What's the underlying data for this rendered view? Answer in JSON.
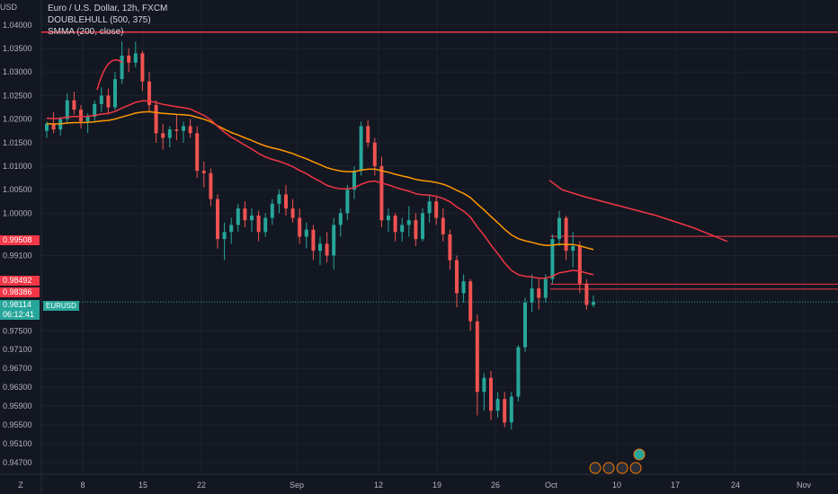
{
  "header": {
    "currency": "USD",
    "title": "Euro / U.S. Dollar, 12h, FXCM",
    "indicator1": "DOUBLEHULL (500, 375)",
    "indicator2": "SMMA (200, close)"
  },
  "price_tags": {
    "resistance1": "0.99508",
    "resistance2": "0.98492",
    "resistance3": "0.98386",
    "current_price": "0.98114",
    "countdown": "06:12:41",
    "symbol": "EURUSD"
  },
  "axis_corner": "Z",
  "colors": {
    "background": "#131722",
    "bull": "#26a69a",
    "bear": "#ef5350",
    "hull": "#f23645",
    "smma": "#ff9800",
    "grid": "#1e222d"
  },
  "chart_data": {
    "type": "candlestick",
    "title": "Euro / U.S. Dollar, 12h, FXCM",
    "y_ticks": [
      "1.04000",
      "1.03500",
      "1.03000",
      "1.02500",
      "1.02000",
      "1.01500",
      "1.01000",
      "1.00500",
      "1.00000",
      "0.99100",
      "0.97500",
      "0.97100",
      "0.96700",
      "0.96300",
      "0.95900",
      "0.95500",
      "0.95100",
      "0.94700"
    ],
    "x_ticks": [
      "8",
      "15",
      "22",
      "Sep",
      "12",
      "19",
      "26",
      "Oct",
      "10",
      "17",
      "24",
      "Nov"
    ],
    "ylim": [
      0.9445,
      1.0415
    ],
    "horizontal_lines": [
      1.0385,
      0.99508,
      0.98492,
      0.98386
    ],
    "current_price": 0.98114,
    "candles": [
      [
        1.0175,
        1.0195,
        1.016,
        1.019
      ],
      [
        1.019,
        1.0215,
        1.017,
        1.0178
      ],
      [
        1.0178,
        1.0205,
        1.0165,
        1.02
      ],
      [
        1.02,
        1.0255,
        1.019,
        1.024
      ],
      [
        1.024,
        1.0258,
        1.021,
        1.022
      ],
      [
        1.022,
        1.023,
        1.018,
        1.0195
      ],
      [
        1.0195,
        1.0212,
        1.017,
        1.0205
      ],
      [
        1.0205,
        1.024,
        1.0195,
        1.0232
      ],
      [
        1.0232,
        1.0268,
        1.0215,
        1.025
      ],
      [
        1.025,
        1.0265,
        1.021,
        1.0225
      ],
      [
        1.0225,
        1.03,
        1.022,
        1.0285
      ],
      [
        1.0285,
        1.0365,
        1.0275,
        1.0335
      ],
      [
        1.0335,
        1.035,
        1.03,
        1.032
      ],
      [
        1.032,
        1.0365,
        1.031,
        1.034
      ],
      [
        1.034,
        1.0345,
        1.026,
        1.028
      ],
      [
        1.028,
        1.03,
        1.0215,
        1.023
      ],
      [
        1.023,
        1.024,
        1.015,
        1.017
      ],
      [
        1.017,
        1.019,
        1.0135,
        1.016
      ],
      [
        1.016,
        1.0185,
        1.014,
        1.0178
      ],
      [
        1.0178,
        1.021,
        1.0155,
        1.0175
      ],
      [
        1.0175,
        1.0195,
        1.015,
        1.0185
      ],
      [
        1.0185,
        1.02,
        1.016,
        1.017
      ],
      [
        1.017,
        1.0185,
        1.0075,
        1.009
      ],
      [
        1.009,
        1.011,
        1.0055,
        1.0085
      ],
      [
        1.0085,
        1.0095,
        1.0015,
        1.003
      ],
      [
        1.003,
        1.004,
        0.9925,
        0.9945
      ],
      [
        0.9945,
        0.998,
        0.99,
        0.996
      ],
      [
        0.996,
        0.999,
        0.9935,
        0.9975
      ],
      [
        0.9975,
        1.002,
        0.996,
        1.001
      ],
      [
        1.001,
        1.0025,
        0.997,
        0.9985
      ],
      [
        0.9985,
        1.001,
        0.996,
        0.9995
      ],
      [
        0.9995,
        1.0005,
        0.994,
        0.996
      ],
      [
        0.996,
        1.0,
        0.995,
        0.999
      ],
      [
        0.999,
        1.003,
        0.9975,
        1.002
      ],
      [
        1.002,
        1.005,
        1.0,
        1.004
      ],
      [
        1.004,
        1.006,
        0.9995,
        1.001
      ],
      [
        1.001,
        1.003,
        0.998,
        0.999
      ],
      [
        0.999,
        1.001,
        0.9935,
        0.995
      ],
      [
        0.995,
        0.998,
        0.9925,
        0.9965
      ],
      [
        0.9965,
        0.9975,
        0.99,
        0.992
      ],
      [
        0.992,
        0.995,
        0.989,
        0.9935
      ],
      [
        0.9935,
        0.996,
        0.9895,
        0.991
      ],
      [
        0.991,
        0.999,
        0.988,
        0.9975
      ],
      [
        0.9975,
        1.001,
        0.995,
        1.0
      ],
      [
        1.0,
        1.006,
        0.9985,
        1.005
      ],
      [
        1.005,
        1.01,
        1.003,
        1.009
      ],
      [
        1.009,
        1.0195,
        1.008,
        1.0185
      ],
      [
        1.0185,
        1.0198,
        1.014,
        1.015
      ],
      [
        1.015,
        1.016,
        1.008,
        1.01
      ],
      [
        1.01,
        1.012,
        0.997,
        0.9985
      ],
      [
        0.9985,
        1.001,
        0.996,
        0.9995
      ],
      [
        0.9995,
        1.0,
        0.994,
        0.996
      ],
      [
        0.996,
        0.999,
        0.994,
        0.9975
      ],
      [
        0.9975,
        1.0015,
        0.995,
        0.9985
      ],
      [
        0.9985,
        1.0,
        0.993,
        0.9945
      ],
      [
        0.9945,
        1.001,
        0.994,
        1.0
      ],
      [
        1.0,
        1.004,
        0.998,
        1.0025
      ],
      [
        1.0025,
        1.0035,
        0.9975,
        0.999
      ],
      [
        0.999,
        1.001,
        0.994,
        0.9955
      ],
      [
        0.9955,
        0.9965,
        0.988,
        0.99
      ],
      [
        0.99,
        0.991,
        0.98,
        0.983
      ],
      [
        0.983,
        0.987,
        0.981,
        0.9855
      ],
      [
        0.9855,
        0.986,
        0.975,
        0.977
      ],
      [
        0.977,
        0.9785,
        0.957,
        0.962
      ],
      [
        0.962,
        0.966,
        0.958,
        0.965
      ],
      [
        0.965,
        0.9665,
        0.956,
        0.958
      ],
      [
        0.958,
        0.962,
        0.9565,
        0.9605
      ],
      [
        0.9605,
        0.962,
        0.9545,
        0.9555
      ],
      [
        0.9555,
        0.962,
        0.954,
        0.961
      ],
      [
        0.961,
        0.972,
        0.96,
        0.9715
      ],
      [
        0.9715,
        0.982,
        0.9705,
        0.981
      ],
      [
        0.981,
        0.987,
        0.979,
        0.984
      ],
      [
        0.984,
        0.986,
        0.9795,
        0.982
      ],
      [
        0.982,
        0.987,
        0.981,
        0.986
      ],
      [
        0.986,
        0.9955,
        0.985,
        0.9945
      ],
      [
        0.9945,
        1.0005,
        0.993,
        0.999
      ],
      [
        0.999,
        0.9995,
        0.99,
        0.992
      ],
      [
        0.992,
        0.996,
        0.9885,
        0.993
      ],
      [
        0.993,
        0.994,
        0.983,
        0.985
      ],
      [
        0.985,
        0.986,
        0.9795,
        0.9805
      ],
      [
        0.9805,
        0.9825,
        0.98,
        0.9811
      ]
    ],
    "series": [
      {
        "name": "DOUBLEHULL (500, 375)"
      },
      {
        "name": "SMMA (200, close)"
      }
    ]
  }
}
